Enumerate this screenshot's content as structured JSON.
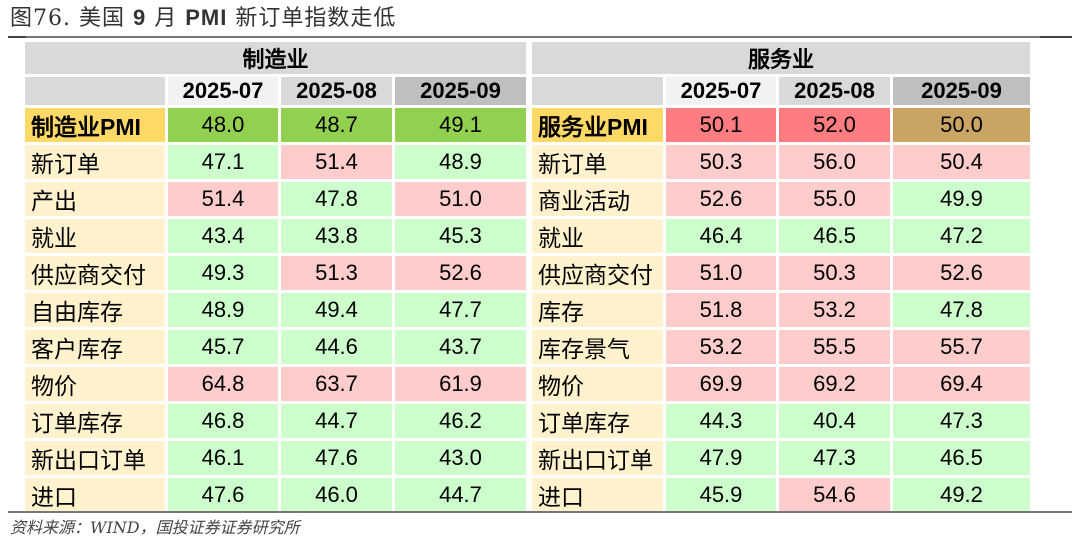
{
  "title": {
    "prefix": "图76. 美国",
    "month": "9",
    "mid": "月",
    "pmi": "PMI",
    "suffix": "新订单指数走低"
  },
  "manufacturing": {
    "section_label": "制造业",
    "periods": [
      "2025-07",
      "2025-08",
      "2025-09"
    ],
    "rows": [
      {
        "label": "制造业PMI",
        "values": [
          "48.0",
          "48.7",
          "49.1"
        ],
        "colors": [
          "G",
          "G",
          "G"
        ]
      },
      {
        "label": "新订单",
        "values": [
          "47.1",
          "51.4",
          "48.9"
        ],
        "colors": [
          "g",
          "r",
          "g"
        ]
      },
      {
        "label": "产出",
        "values": [
          "51.4",
          "47.8",
          "51.0"
        ],
        "colors": [
          "r",
          "g",
          "r"
        ]
      },
      {
        "label": "就业",
        "values": [
          "43.4",
          "43.8",
          "45.3"
        ],
        "colors": [
          "g",
          "g",
          "g"
        ]
      },
      {
        "label": "供应商交付",
        "values": [
          "49.3",
          "51.3",
          "52.6"
        ],
        "colors": [
          "g",
          "r",
          "r"
        ]
      },
      {
        "label": "自由库存",
        "values": [
          "48.9",
          "49.4",
          "47.7"
        ],
        "colors": [
          "g",
          "g",
          "g"
        ]
      },
      {
        "label": "客户库存",
        "values": [
          "45.7",
          "44.6",
          "43.7"
        ],
        "colors": [
          "g",
          "g",
          "g"
        ]
      },
      {
        "label": "物价",
        "values": [
          "64.8",
          "63.7",
          "61.9"
        ],
        "colors": [
          "r",
          "r",
          "r"
        ]
      },
      {
        "label": "订单库存",
        "values": [
          "46.8",
          "44.7",
          "46.2"
        ],
        "colors": [
          "g",
          "g",
          "g"
        ]
      },
      {
        "label": "新出口订单",
        "values": [
          "46.1",
          "47.6",
          "43.0"
        ],
        "colors": [
          "g",
          "g",
          "g"
        ]
      },
      {
        "label": "进口",
        "values": [
          "47.6",
          "46.0",
          "44.7"
        ],
        "colors": [
          "g",
          "g",
          "g"
        ]
      }
    ]
  },
  "services": {
    "section_label": "服务业",
    "periods": [
      "2025-07",
      "2025-08",
      "2025-09"
    ],
    "rows": [
      {
        "label": "服务业PMI",
        "values": [
          "50.1",
          "52.0",
          "50.0"
        ],
        "colors": [
          "R",
          "R",
          "B"
        ]
      },
      {
        "label": "新订单",
        "values": [
          "50.3",
          "56.0",
          "50.4"
        ],
        "colors": [
          "r",
          "r",
          "r"
        ]
      },
      {
        "label": "商业活动",
        "values": [
          "52.6",
          "55.0",
          "49.9"
        ],
        "colors": [
          "r",
          "r",
          "g"
        ]
      },
      {
        "label": "就业",
        "values": [
          "46.4",
          "46.5",
          "47.2"
        ],
        "colors": [
          "g",
          "g",
          "g"
        ]
      },
      {
        "label": "供应商交付",
        "values": [
          "51.0",
          "50.3",
          "52.6"
        ],
        "colors": [
          "r",
          "r",
          "r"
        ]
      },
      {
        "label": "库存",
        "values": [
          "51.8",
          "53.2",
          "47.8"
        ],
        "colors": [
          "r",
          "r",
          "g"
        ]
      },
      {
        "label": "库存景气",
        "values": [
          "53.2",
          "55.5",
          "55.7"
        ],
        "colors": [
          "r",
          "r",
          "r"
        ]
      },
      {
        "label": "物价",
        "values": [
          "69.9",
          "69.2",
          "69.4"
        ],
        "colors": [
          "r",
          "r",
          "r"
        ]
      },
      {
        "label": "订单库存",
        "values": [
          "44.3",
          "40.4",
          "47.3"
        ],
        "colors": [
          "g",
          "g",
          "g"
        ]
      },
      {
        "label": "新出口订单",
        "values": [
          "47.9",
          "47.3",
          "46.5"
        ],
        "colors": [
          "g",
          "g",
          "g"
        ]
      },
      {
        "label": "进口",
        "values": [
          "45.9",
          "54.6",
          "49.2"
        ],
        "colors": [
          "g",
          "r",
          "g"
        ]
      }
    ]
  },
  "color_legend": {
    "G": "#92d050",
    "g": "#ccffcc",
    "r": "#ffcccc",
    "R": "#ff7c80",
    "B": "#c9a463",
    "label_bg": "#fff2cc",
    "main_label_bg": "#ffd966",
    "header_bg": "#d9d9d9"
  },
  "source": "资料来源：WIND，国投证券证券研究所"
}
